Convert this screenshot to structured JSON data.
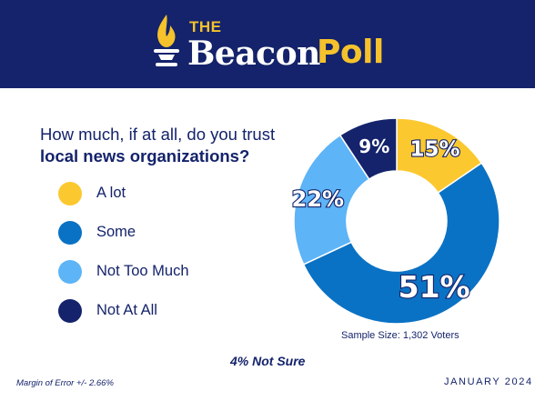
{
  "header": {
    "logo_small": "THE",
    "logo_main": "Beacon",
    "logo_accent": "Poll",
    "background": "#14236b",
    "accent": "#f5c22c"
  },
  "question": {
    "line1": "How much, if at all, do you trust",
    "line2": "local news organizations?"
  },
  "chart_data": {
    "type": "pie",
    "style": "donut",
    "title": "How much, if at all, do you trust local news organizations?",
    "categories": [
      "A lot",
      "Some",
      "Not Too Much",
      "Not At All"
    ],
    "values": [
      15,
      51,
      22,
      9
    ],
    "labels": [
      "15%",
      "51%",
      "22%",
      "9%"
    ],
    "colors": [
      "#fbc82f",
      "#0a72c4",
      "#5db4f7",
      "#14236b"
    ],
    "legend": "left"
  },
  "legend": [
    {
      "label": "A lot",
      "color": "#fbc82f"
    },
    {
      "label": "Some",
      "color": "#0a72c4"
    },
    {
      "label": "Not Too Much",
      "color": "#5db4f7"
    },
    {
      "label": "Not At All",
      "color": "#14236b"
    }
  ],
  "sample_size": "Sample Size: 1,302 Voters",
  "not_sure": "4% Not Sure",
  "margin_of_error": "Margin of Error +/- 2.66%",
  "date": "JANUARY 2024"
}
